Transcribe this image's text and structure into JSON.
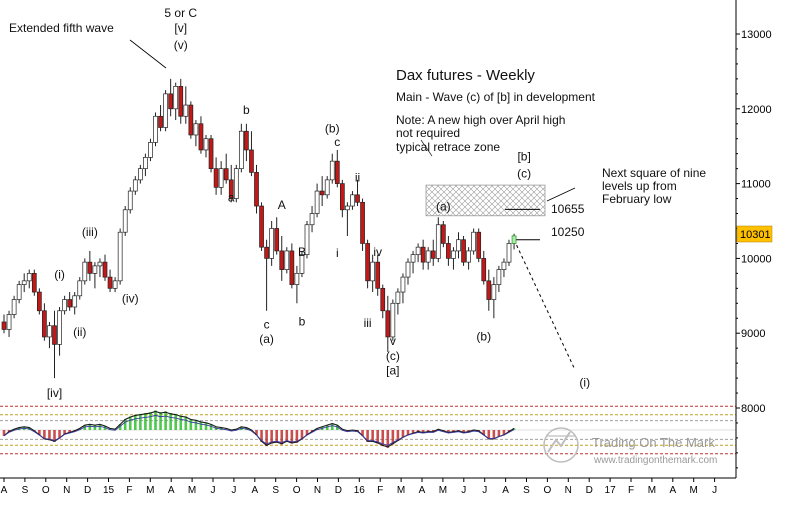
{
  "chart_data": {
    "type": "candlestick",
    "title": "Dax futures - Weekly",
    "subtitle": "Main - Wave (c) of [b] in development",
    "note_lines": [
      "Note: A new high over April high",
      "not required",
      "typical retrace zone"
    ],
    "side_note_lines": [
      "Next square of nine",
      "levels up from",
      "February low"
    ],
    "watermark": {
      "name": "Trading On The Mark",
      "url": "www.tradingonthemark.com"
    },
    "y_axis": {
      "ticks": [
        8000,
        9000,
        10000,
        11000,
        12000,
        13000
      ],
      "tick_labels": [
        "8000",
        "9000",
        "10000",
        "11000",
        "12000",
        "13000"
      ],
      "range": [
        7200,
        13500
      ]
    },
    "x_axis": {
      "tick_labels": [
        "A",
        "S",
        "O",
        "N",
        "D",
        "15",
        "F",
        "M",
        "A",
        "M",
        "J",
        "J",
        "A",
        "S",
        "O",
        "N",
        "D",
        "16",
        "F",
        "M",
        "A",
        "M",
        "J",
        "J",
        "A",
        "S",
        "O",
        "N",
        "D",
        "17",
        "F",
        "M",
        "A",
        "M",
        "J"
      ],
      "range": [
        "2014-08",
        "2017-06"
      ]
    },
    "current_price": {
      "label": "10301",
      "value": 10301,
      "color": "#ffc000"
    },
    "levels": [
      {
        "label": "10655",
        "value": 10655
      },
      {
        "label": "10250",
        "value": 10250
      }
    ],
    "retrace_zone": {
      "low": 10570,
      "high": 10980
    },
    "wave_labels": [
      {
        "text": "Extended fifth wave",
        "price": 13030,
        "week": 1
      },
      {
        "text": "5 or C",
        "price": 13230,
        "week": 35
      },
      {
        "text": "[v]",
        "price": 13030,
        "week": 35
      },
      {
        "text": "(v)",
        "price": 12800,
        "week": 35
      },
      {
        "text": "(i)",
        "price": 9730,
        "week": 11
      },
      {
        "text": "(ii)",
        "price": 8960,
        "week": 15
      },
      {
        "text": "(iii)",
        "price": 10300,
        "week": 17
      },
      {
        "text": "(iv)",
        "price": 9410,
        "week": 25
      },
      {
        "text": "[iv]",
        "price": 8150,
        "week": 10
      },
      {
        "text": "b",
        "price": 11930,
        "week": 48
      },
      {
        "text": "a",
        "price": 10760,
        "week": 45
      },
      {
        "text": "c",
        "price": 9060,
        "week": 52
      },
      {
        "text": "(a)",
        "price": 8870,
        "week": 52
      },
      {
        "text": "A",
        "price": 10660,
        "week": 55
      },
      {
        "text": "B",
        "price": 10030,
        "week": 59
      },
      {
        "text": "b",
        "price": 9100,
        "week": 59
      },
      {
        "text": "(b)",
        "price": 11680,
        "week": 65
      },
      {
        "text": "c",
        "price": 11500,
        "week": 66
      },
      {
        "text": "ii",
        "price": 11030,
        "week": 70
      },
      {
        "text": "i",
        "price": 10020,
        "week": 66
      },
      {
        "text": "iv",
        "price": 10030,
        "week": 74
      },
      {
        "text": "iii",
        "price": 9080,
        "week": 72
      },
      {
        "text": "v",
        "price": 8840,
        "week": 77
      },
      {
        "text": "(c)",
        "price": 8640,
        "week": 77
      },
      {
        "text": "[a]",
        "price": 8450,
        "week": 77
      },
      {
        "text": "(a)",
        "price": 10640,
        "week": 87
      },
      {
        "text": "(b)",
        "price": 8900,
        "week": 95
      },
      {
        "text": "[b]",
        "price": 11310,
        "week": 103
      },
      {
        "text": "(c)",
        "price": 11080,
        "week": 103
      },
      {
        "text": "(i)",
        "price": 8290,
        "week": 115
      }
    ],
    "projection": {
      "from_week": 101,
      "from_price": 10250,
      "to_week": 113,
      "to_price": 8520
    },
    "candles": [
      [
        9150,
        9250,
        9000,
        9050
      ],
      [
        9050,
        9300,
        8950,
        9250
      ],
      [
        9250,
        9500,
        9200,
        9450
      ],
      [
        9450,
        9700,
        9400,
        9650
      ],
      [
        9650,
        9800,
        9550,
        9700
      ],
      [
        9700,
        9850,
        9600,
        9800
      ],
      [
        9800,
        9850,
        9500,
        9550
      ],
      [
        9550,
        9600,
        9250,
        9300
      ],
      [
        9300,
        9400,
        8900,
        8950
      ],
      [
        8950,
        9150,
        8800,
        9100
      ],
      [
        9100,
        9300,
        8400,
        8850
      ],
      [
        8850,
        9350,
        8700,
        9300
      ],
      [
        9300,
        9500,
        9250,
        9450
      ],
      [
        9450,
        9550,
        9300,
        9350
      ],
      [
        9350,
        9550,
        9250,
        9500
      ],
      [
        9500,
        9750,
        9450,
        9700
      ],
      [
        9700,
        10000,
        9650,
        9950
      ],
      [
        9950,
        10100,
        9700,
        9800
      ],
      [
        9800,
        9950,
        9600,
        9900
      ],
      [
        9900,
        10000,
        9750,
        9950
      ],
      [
        9950,
        10050,
        9700,
        9750
      ],
      [
        9750,
        9850,
        9550,
        9600
      ],
      [
        9600,
        9750,
        9550,
        9700
      ],
      [
        9700,
        10400,
        9650,
        10350
      ],
      [
        10350,
        10700,
        10300,
        10650
      ],
      [
        10650,
        10950,
        10600,
        10900
      ],
      [
        10900,
        11100,
        10850,
        11050
      ],
      [
        11050,
        11250,
        11000,
        11200
      ],
      [
        11200,
        11400,
        11100,
        11350
      ],
      [
        11350,
        11600,
        11300,
        11550
      ],
      [
        11550,
        11950,
        11500,
        11900
      ],
      [
        11900,
        12050,
        11700,
        11750
      ],
      [
        11750,
        12250,
        11700,
        12200
      ],
      [
        12200,
        12400,
        11900,
        12000
      ],
      [
        12000,
        12350,
        11850,
        12300
      ],
      [
        12300,
        12400,
        11800,
        11900
      ],
      [
        11900,
        12300,
        11800,
        12050
      ],
      [
        12050,
        12100,
        11600,
        11650
      ],
      [
        11650,
        11850,
        11500,
        11800
      ],
      [
        11800,
        11900,
        11400,
        11450
      ],
      [
        11450,
        11650,
        11350,
        11600
      ],
      [
        11600,
        11650,
        11150,
        11200
      ],
      [
        11200,
        11350,
        10850,
        10950
      ],
      [
        10950,
        11300,
        10850,
        11200
      ],
      [
        11200,
        11400,
        11000,
        11050
      ],
      [
        11050,
        11250,
        10750,
        10800
      ],
      [
        10800,
        11250,
        10750,
        11200
      ],
      [
        11200,
        11800,
        11150,
        11700
      ],
      [
        11700,
        11800,
        11300,
        11450
      ],
      [
        11450,
        11700,
        11100,
        11150
      ],
      [
        11150,
        11250,
        10600,
        10700
      ],
      [
        10700,
        10750,
        10100,
        10150
      ],
      [
        10150,
        10250,
        9300,
        10000
      ],
      [
        10000,
        10500,
        9900,
        10400
      ],
      [
        10400,
        10550,
        10050,
        10100
      ],
      [
        10100,
        10300,
        9700,
        9850
      ],
      [
        9850,
        10150,
        9800,
        10100
      ],
      [
        10100,
        10200,
        9600,
        9650
      ],
      [
        9650,
        9900,
        9400,
        9800
      ],
      [
        9800,
        10100,
        9750,
        10050
      ],
      [
        10050,
        10500,
        10000,
        10450
      ],
      [
        10450,
        10700,
        10350,
        10600
      ],
      [
        10600,
        11000,
        10550,
        10900
      ],
      [
        10900,
        11100,
        10700,
        10850
      ],
      [
        10850,
        11100,
        10800,
        11050
      ],
      [
        11050,
        11400,
        11000,
        11300
      ],
      [
        11300,
        11450,
        10950,
        11000
      ],
      [
        11000,
        11050,
        10550,
        10650
      ],
      [
        10650,
        10750,
        10300,
        10700
      ],
      [
        10700,
        10900,
        10650,
        10850
      ],
      [
        10850,
        11050,
        10700,
        10750
      ],
      [
        10750,
        10800,
        10100,
        10200
      ],
      [
        10200,
        10250,
        9600,
        9700
      ],
      [
        9700,
        10050,
        9550,
        9950
      ],
      [
        9950,
        10050,
        9500,
        9600
      ],
      [
        9600,
        9650,
        9200,
        9300
      ],
      [
        9300,
        9500,
        8750,
        8950
      ],
      [
        8950,
        9450,
        8900,
        9400
      ],
      [
        9400,
        9600,
        9250,
        9550
      ],
      [
        9550,
        9800,
        9400,
        9750
      ],
      [
        9750,
        10000,
        9650,
        9950
      ],
      [
        9950,
        10100,
        9800,
        10050
      ],
      [
        10050,
        10200,
        9950,
        10150
      ],
      [
        10150,
        10250,
        9850,
        9950
      ],
      [
        9950,
        10150,
        9850,
        10100
      ],
      [
        10100,
        10250,
        9900,
        10000
      ],
      [
        10000,
        10550,
        9950,
        10450
      ],
      [
        10450,
        10500,
        10150,
        10200
      ],
      [
        10200,
        10300,
        9900,
        10000
      ],
      [
        10000,
        10150,
        9850,
        10100
      ],
      [
        10100,
        10350,
        10000,
        10250
      ],
      [
        10250,
        10300,
        9900,
        9950
      ],
      [
        9950,
        10150,
        9850,
        10100
      ],
      [
        10100,
        10400,
        10050,
        10350
      ],
      [
        10350,
        10400,
        9950,
        10000
      ],
      [
        10000,
        10100,
        9650,
        9700
      ],
      [
        9700,
        9850,
        9300,
        9450
      ],
      [
        9450,
        9750,
        9200,
        9650
      ],
      [
        9650,
        9900,
        9550,
        9850
      ],
      [
        9850,
        10000,
        9750,
        9950
      ],
      [
        9950,
        10250,
        9900,
        10200
      ],
      [
        10200,
        10330,
        10120,
        10301
      ]
    ],
    "oscillator": [
      -0.35,
      -0.1,
      0.05,
      0.15,
      0.2,
      0.15,
      -0.05,
      -0.3,
      -0.55,
      -0.6,
      -0.7,
      -0.5,
      -0.25,
      -0.15,
      -0.05,
      0.1,
      0.3,
      0.35,
      0.3,
      0.35,
      0.25,
      0.1,
      0.05,
      0.35,
      0.65,
      0.8,
      0.9,
      0.95,
      1.0,
      1.05,
      1.15,
      1.05,
      1.1,
      1.0,
      0.95,
      0.85,
      0.8,
      0.65,
      0.6,
      0.5,
      0.45,
      0.35,
      0.2,
      0.15,
      0.1,
      0.0,
      0.05,
      0.2,
      0.15,
      0.0,
      -0.3,
      -0.7,
      -0.95,
      -0.8,
      -0.75,
      -0.85,
      -0.7,
      -0.8,
      -0.75,
      -0.55,
      -0.3,
      -0.1,
      0.1,
      0.2,
      0.3,
      0.4,
      0.3,
      0.05,
      -0.05,
      0.0,
      -0.05,
      -0.35,
      -0.7,
      -0.7,
      -0.8,
      -0.95,
      -1.05,
      -0.85,
      -0.65,
      -0.45,
      -0.3,
      -0.2,
      -0.1,
      -0.15,
      -0.1,
      -0.1,
      0.05,
      -0.05,
      -0.15,
      -0.1,
      -0.05,
      -0.15,
      -0.1,
      0.0,
      -0.05,
      -0.3,
      -0.55,
      -0.55,
      -0.4,
      -0.3,
      -0.1,
      0.1
    ],
    "oscillator_lines": [
      1.4,
      0.9,
      0.55,
      -0.55,
      -0.9,
      -1.4
    ]
  }
}
